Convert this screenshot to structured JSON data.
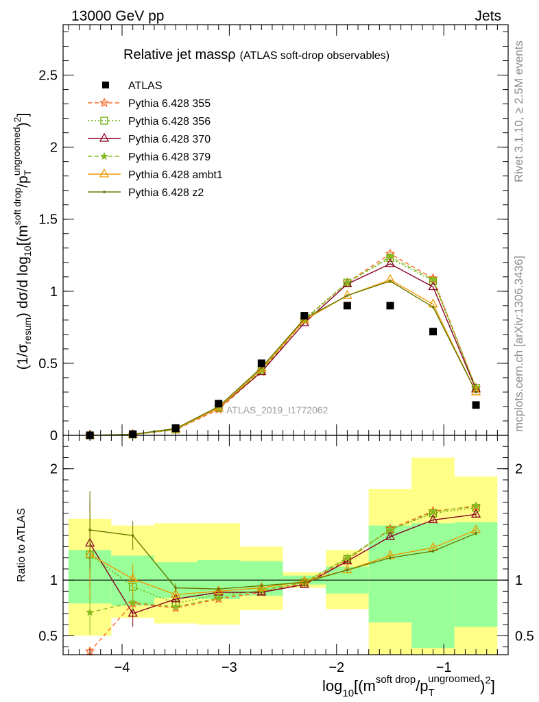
{
  "header": {
    "energy_label": "13000 GeV pp",
    "process_label": "Jets"
  },
  "side_labels": {
    "rivet": "Rivet 3.1.10, ≥ 2.5M events",
    "mcplots": "mcplots.cern.ch [arXiv:1306.3436]"
  },
  "chart_data": [
    {
      "type": "scatter",
      "title_main": "Relative jet massρ",
      "title_sub": "(ATLAS soft-drop observables)",
      "watermark": "ATLAS_2019_I1772062",
      "ylabel": "(1/σresum) dσ/d log10[(m soft drop/pT ungroomed)2]",
      "xlim": [
        -4.55,
        -0.4
      ],
      "ylim": [
        0,
        2.85
      ],
      "yticks": [
        0,
        0.5,
        1,
        1.5,
        2,
        2.5
      ],
      "ytick_labels": [
        "0",
        "0.5",
        "1",
        "1.5",
        "2",
        "2.5"
      ],
      "x": [
        -4.3,
        -3.9,
        -3.5,
        -3.1,
        -2.7,
        -2.3,
        -1.9,
        -1.5,
        -1.1,
        -0.7
      ],
      "data": {
        "name": "ATLAS",
        "values": [
          0.0,
          0.008,
          0.05,
          0.22,
          0.5,
          0.83,
          0.9,
          0.9,
          0.72,
          0.21
        ]
      },
      "series": [
        {
          "name": "Pythia 6.428 355",
          "color": "#ff6622",
          "marker": "star-open",
          "dash": "6,4",
          "values": [
            0.0,
            0.005,
            0.038,
            0.18,
            0.44,
            0.8,
            1.06,
            1.26,
            1.09,
            0.33
          ]
        },
        {
          "name": "Pythia 6.428 356",
          "color": "#66aa00",
          "marker": "square-open",
          "dash": "2,3",
          "values": [
            0.0,
            0.006,
            0.041,
            0.19,
            0.45,
            0.81,
            1.06,
            1.23,
            1.07,
            0.33
          ]
        },
        {
          "name": "Pythia 6.428 370",
          "color": "#880022",
          "marker": "triangle-open",
          "dash": "",
          "values": [
            0.0,
            0.005,
            0.043,
            0.19,
            0.44,
            0.78,
            1.05,
            1.19,
            1.03,
            0.32
          ]
        },
        {
          "name": "Pythia 6.428 379",
          "color": "#88bb22",
          "marker": "star-filled",
          "dash": "6,4",
          "values": [
            0.0,
            0.005,
            0.039,
            0.19,
            0.45,
            0.8,
            1.06,
            1.24,
            1.08,
            0.33
          ]
        },
        {
          "name": "Pythia 6.428 ambt1",
          "color": "#ee9900",
          "marker": "triangle-open",
          "dash": "",
          "values": [
            0.0,
            0.006,
            0.044,
            0.19,
            0.46,
            0.8,
            0.97,
            1.08,
            0.91,
            0.3
          ]
        },
        {
          "name": "Pythia 6.428 z2",
          "color": "#667700",
          "marker": "dot",
          "dash": "",
          "values": [
            0.0,
            0.007,
            0.047,
            0.2,
            0.47,
            0.81,
            0.97,
            1.07,
            0.89,
            0.3
          ]
        }
      ]
    },
    {
      "type": "scatter",
      "ylabel": "Ratio to ATLAS",
      "xlabel": "log10[(m soft drop/pT ungroomed)2]",
      "xlim": [
        -4.55,
        -0.4
      ],
      "ylim": [
        0.33,
        2.3
      ],
      "yticks": [
        0.5,
        1,
        2
      ],
      "ytick_labels": [
        "0.5",
        "1",
        "2"
      ],
      "xticks": [
        -4,
        -3,
        -2,
        -1
      ],
      "xtick_labels": [
        "−4",
        "−3",
        "−2",
        "−1"
      ],
      "bins": [
        -4.5,
        -4.1,
        -3.7,
        -3.3,
        -2.9,
        -2.5,
        -2.1,
        -1.7,
        -1.3,
        -0.9,
        -0.5
      ],
      "band_green": [
        [
          0.79,
          1.27
        ],
        [
          0.77,
          1.22
        ],
        [
          0.84,
          1.16
        ],
        [
          0.83,
          1.18
        ],
        [
          0.86,
          1.17
        ],
        [
          0.96,
          1.04
        ],
        [
          0.88,
          1.12
        ],
        [
          0.62,
          1.49
        ],
        [
          0.39,
          1.51
        ],
        [
          0.58,
          1.52
        ]
      ],
      "band_yellow": [
        [
          0.5,
          1.55
        ],
        [
          0.66,
          1.49
        ],
        [
          0.61,
          1.51
        ],
        [
          0.6,
          1.51
        ],
        [
          0.73,
          1.3
        ],
        [
          0.93,
          1.07
        ],
        [
          0.74,
          1.27
        ],
        [
          0.33,
          1.82
        ],
        [
          0.33,
          2.1
        ],
        [
          0.33,
          1.93
        ]
      ],
      "ratios": [
        {
          "name": "Pythia 6.428 355",
          "values": [
            0.36,
            0.79,
            0.75,
            0.83,
            0.89,
            0.97,
            1.18,
            1.46,
            1.62,
            1.66
          ],
          "err": [
            0.04,
            0.1,
            0.03,
            0.02,
            0.02,
            0.02,
            0.02,
            0.02,
            0.02,
            0.02
          ]
        },
        {
          "name": "Pythia 6.428 356",
          "values": [
            1.23,
            0.94,
            0.79,
            0.87,
            0.9,
            0.98,
            1.19,
            1.45,
            1.6,
            1.65
          ],
          "err": [
            0.45,
            0.17,
            0.04,
            0.02,
            0.02,
            0.02,
            0.02,
            0.02,
            0.02,
            0.02
          ]
        },
        {
          "name": "Pythia 6.428 370",
          "values": [
            1.33,
            0.7,
            0.83,
            0.89,
            0.89,
            0.96,
            1.17,
            1.39,
            1.54,
            1.59
          ],
          "err": [
            0.4,
            0.12,
            0.04,
            0.02,
            0.02,
            0.02,
            0.02,
            0.02,
            0.02,
            0.02
          ]
        },
        {
          "name": "Pythia 6.428 379",
          "values": [
            0.71,
            0.8,
            0.76,
            0.84,
            0.91,
            0.98,
            1.2,
            1.45,
            1.61,
            1.67
          ],
          "err": [
            0.2,
            0.08,
            0.03,
            0.02,
            0.02,
            0.02,
            0.02,
            0.02,
            0.02,
            0.02
          ]
        },
        {
          "name": "Pythia 6.428 ambt1",
          "values": [
            1.23,
            1.01,
            0.87,
            0.9,
            0.93,
            0.99,
            1.09,
            1.22,
            1.29,
            1.45
          ],
          "err": [
            0.4,
            0.14,
            0.04,
            0.02,
            0.02,
            0.02,
            0.02,
            0.02,
            0.02,
            0.02
          ]
        },
        {
          "name": "Pythia 6.428 z2",
          "values": [
            1.45,
            1.4,
            0.93,
            0.92,
            0.95,
            0.98,
            1.09,
            1.2,
            1.26,
            1.42
          ],
          "err": [
            0.35,
            0.13,
            0.04,
            0.02,
            0.02,
            0.02,
            0.02,
            0.02,
            0.02,
            0.02
          ]
        }
      ]
    }
  ]
}
